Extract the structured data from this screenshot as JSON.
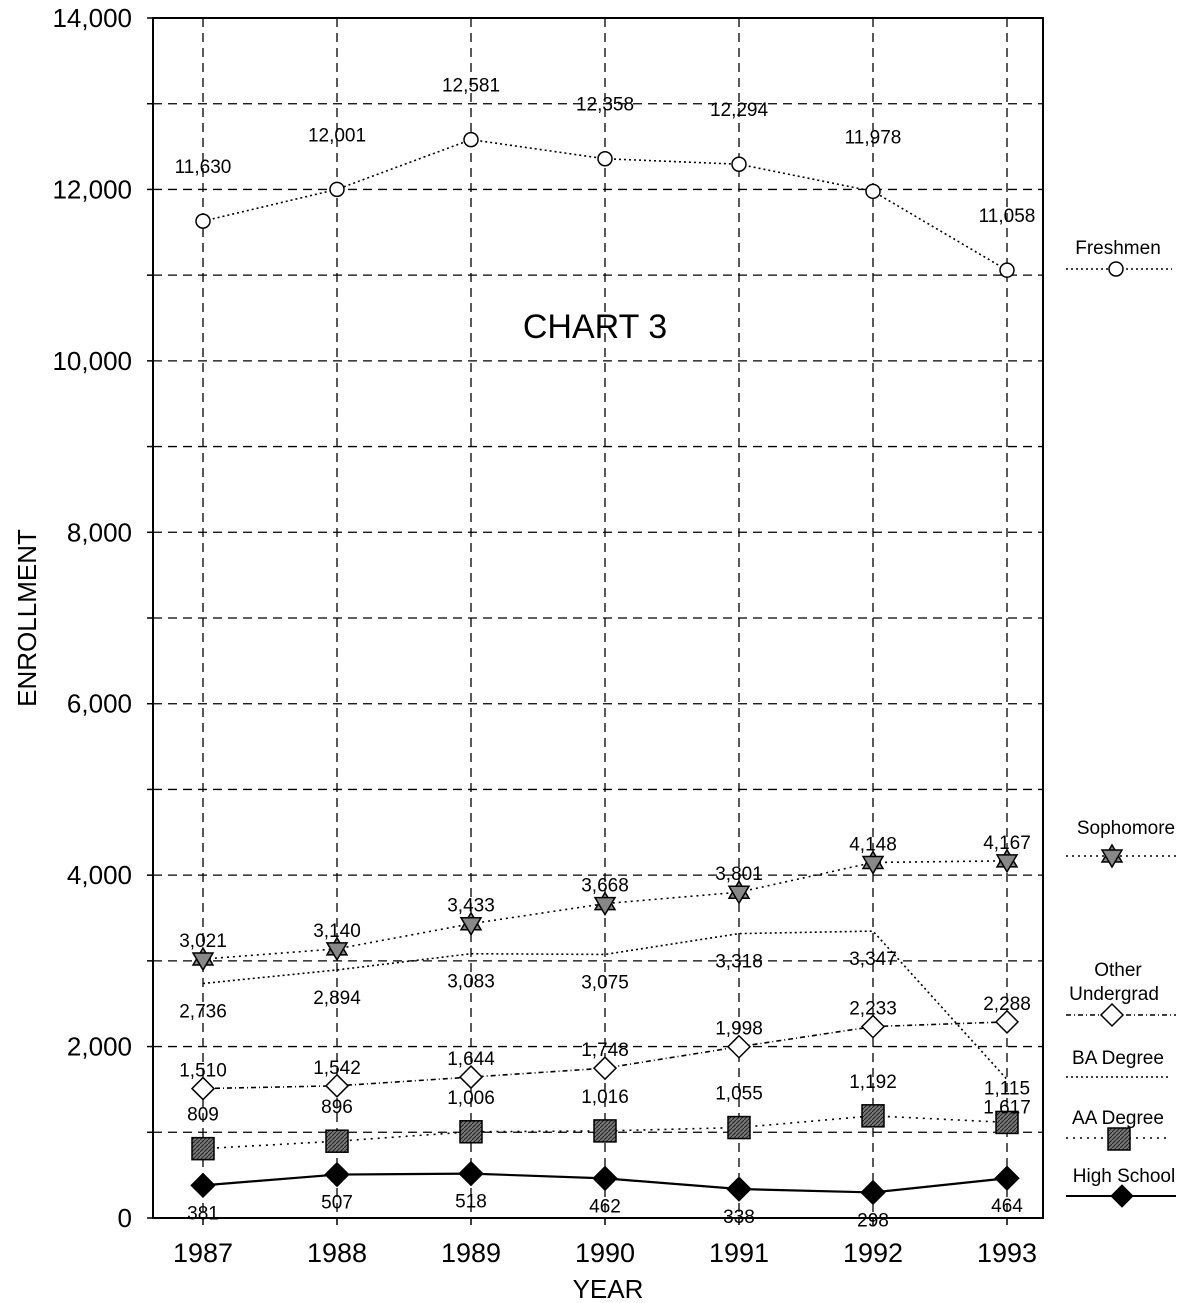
{
  "chart_data": {
    "type": "line",
    "title": "CHART 3",
    "xlabel": "YEAR",
    "ylabel": "ENROLLMENT",
    "ylim": [
      0,
      14000
    ],
    "y_ticks": [
      "0",
      "2,000",
      "4,000",
      "6,000",
      "8,000",
      "10,000",
      "12,000",
      "14,000"
    ],
    "grid": true,
    "legend_position": "right",
    "categories": [
      "1987",
      "1988",
      "1989",
      "1990",
      "1991",
      "1992",
      "1993"
    ],
    "series": [
      {
        "name": "Freshmen",
        "marker": "circle",
        "values": [
          11630,
          12001,
          12581,
          12358,
          12294,
          11978,
          11058
        ],
        "labels": [
          "11,630",
          "12,001",
          "12,581",
          "12,358",
          "12,294",
          "11,978",
          "11,058"
        ]
      },
      {
        "name": "Sophomore",
        "marker": "star",
        "values": [
          3021,
          3140,
          3433,
          3668,
          3801,
          4148,
          4167
        ],
        "labels": [
          "3,021",
          "3,140",
          "3,433",
          "3,668",
          "3,801",
          "4,148",
          "4,167"
        ]
      },
      {
        "name": "Other Undergrad",
        "marker": "diamond-open",
        "values": [
          1510,
          1542,
          1644,
          1748,
          1998,
          2233,
          2288
        ],
        "labels": [
          "1,510",
          "1,542",
          "1,644",
          "1,748",
          "1,998",
          "2,233",
          "2,288"
        ]
      },
      {
        "name": "BA Degree",
        "marker": "none",
        "values": [
          2736,
          2894,
          3083,
          3075,
          3318,
          3347,
          1617
        ],
        "labels": [
          "2,736",
          "2,894",
          "3,083",
          "3,075",
          "3,318",
          "3,347",
          "1,617"
        ]
      },
      {
        "name": "AA Degree",
        "marker": "square",
        "values": [
          809,
          896,
          1006,
          1016,
          1055,
          1192,
          1115
        ],
        "labels": [
          "809",
          "896",
          "1,006",
          "1,016",
          "1,055",
          "1,192",
          "1,115"
        ]
      },
      {
        "name": "High School",
        "marker": "diamond-filled",
        "values": [
          381,
          507,
          518,
          462,
          338,
          298,
          464
        ],
        "labels": [
          "381",
          "507",
          "518",
          "462",
          "338",
          "298",
          "464"
        ]
      }
    ]
  },
  "legend": {
    "freshmen": "Freshmen",
    "sophomore": "Sophomore",
    "other_line1": "Other",
    "other_line2": "Undergrad",
    "ba": "BA Degree",
    "aa": "AA Degree",
    "hs": "High School"
  },
  "colors": {
    "ink": "#000000",
    "grid": "#000000",
    "marker_fill": "#888888",
    "background": "#ffffff"
  }
}
